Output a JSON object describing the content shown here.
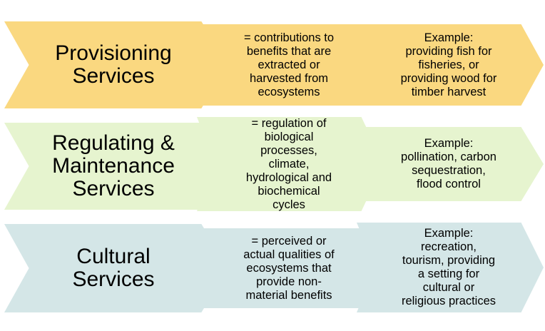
{
  "rows": [
    {
      "title": "Provisioning\nServices",
      "definition": "= contributions to\nbenefits that are\nextracted or\nharvested from\necosystems",
      "example": "Example:\nproviding fish for\nfisheries, or\nproviding wood for\ntimber harvest"
    },
    {
      "title": "Regulating &\nMaintenance\nServices",
      "definition": "= regulation of\nbiological\nprocesses,\nclimate,\nhydrological and\nbiochemical\ncycles",
      "example": "Example:\npollination, carbon\nsequestration,\nflood control"
    },
    {
      "title": "Cultural\nServices",
      "definition": "=  perceived or\nactual qualities of\necosystems that\nprovide non-\nmaterial benefits",
      "example": "Example:\nrecreation,\ntourism, providing\na setting for\ncultural or\nreligious practices"
    }
  ],
  "colors": {
    "provisioning": "#fad880",
    "regulating": "#e6f4cf",
    "cultural": "#d4e6e7"
  }
}
